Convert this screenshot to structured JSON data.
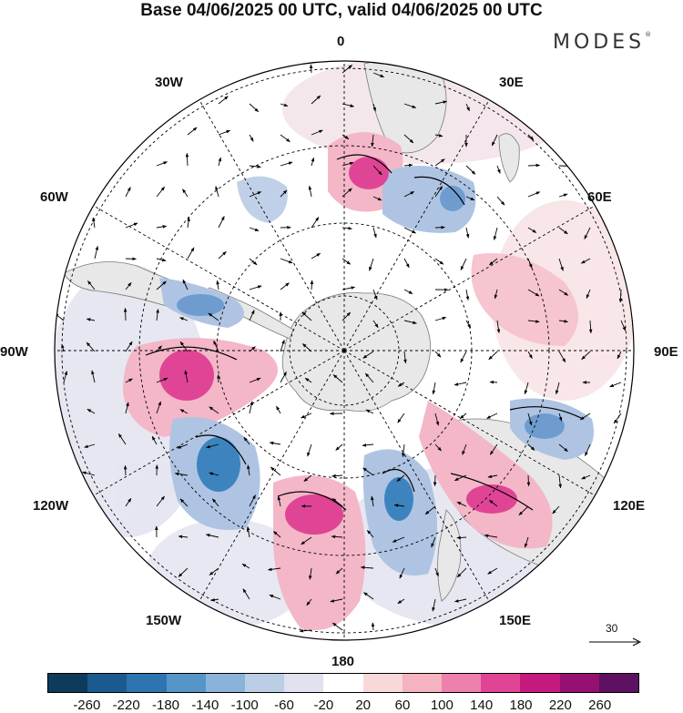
{
  "title": "Base 04/06/2025 00 UTC, valid 04/06/2025 00 UTC",
  "brand": "MODES",
  "brand_mark": "®",
  "longitude_labels": {
    "top": "0",
    "lon30e": "30E",
    "lon60e": "60E",
    "lon90e": "90E",
    "lon120e": "120E",
    "lon150e": "150E",
    "bottom": "180",
    "lon150w": "150W",
    "lon120w": "120W",
    "lon90w": "90W",
    "lon60w": "60W",
    "lon30w": "30W"
  },
  "reference_vector": {
    "label": "30"
  },
  "colorbar": {
    "colors": [
      "#0e3a5c",
      "#1a5a8e",
      "#2d74b0",
      "#5595c8",
      "#8ab3da",
      "#bccde6",
      "#e1e1ef",
      "#ffffff",
      "#f9d8da",
      "#f5b2c0",
      "#ed80ac",
      "#e04595",
      "#c41a7e",
      "#951070",
      "#5e1063"
    ],
    "ticks": [
      "-260",
      "-220",
      "-180",
      "-140",
      "-100",
      "-60",
      "-20",
      "20",
      "60",
      "100",
      "140",
      "180",
      "220",
      "260"
    ]
  },
  "colors": {
    "land": "#e8e8e8",
    "blue_strong": "#3d84bf",
    "blue_mid": "#7ea8d4",
    "blue_light": "#c3d2e9",
    "pink_strong": "#e04595",
    "pink_mid": "#ee8bb2",
    "pink_light": "#f8d3d9"
  }
}
